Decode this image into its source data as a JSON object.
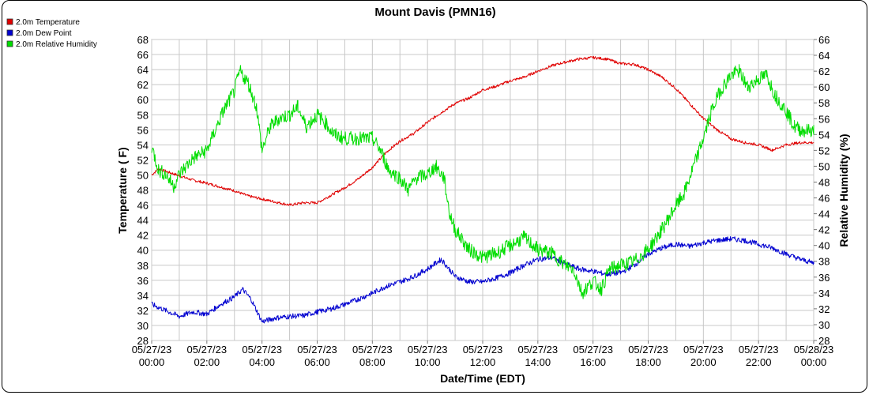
{
  "chart_data": {
    "type": "line",
    "title": "Mount Davis (PMN16)",
    "xlabel": "Date/Time (EDT)",
    "ylabel_left": "Temperature ( F)",
    "ylabel_right": "Relative Humidity (%)",
    "ylim_left": [
      28,
      68
    ],
    "ylim_right": [
      28,
      66
    ],
    "yticks_left": [
      28,
      30,
      32,
      34,
      36,
      38,
      40,
      42,
      44,
      46,
      48,
      50,
      52,
      54,
      56,
      58,
      60,
      62,
      64,
      66,
      68
    ],
    "yticks_right": [
      28,
      30,
      32,
      34,
      36,
      38,
      40,
      42,
      44,
      46,
      48,
      50,
      52,
      54,
      56,
      58,
      60,
      62,
      64,
      66
    ],
    "xlim_hours": [
      0,
      24
    ],
    "x_ticks": [
      {
        "hour": 0,
        "date": "05/27/23",
        "time": "00:00"
      },
      {
        "hour": 2,
        "date": "05/27/23",
        "time": "02:00"
      },
      {
        "hour": 4,
        "date": "05/27/23",
        "time": "04:00"
      },
      {
        "hour": 6,
        "date": "05/27/23",
        "time": "06:00"
      },
      {
        "hour": 8,
        "date": "05/27/23",
        "time": "08:00"
      },
      {
        "hour": 10,
        "date": "05/27/23",
        "time": "10:00"
      },
      {
        "hour": 12,
        "date": "05/27/23",
        "time": "12:00"
      },
      {
        "hour": 14,
        "date": "05/27/23",
        "time": "14:00"
      },
      {
        "hour": 16,
        "date": "05/27/23",
        "time": "16:00"
      },
      {
        "hour": 18,
        "date": "05/27/23",
        "time": "18:00"
      },
      {
        "hour": 20,
        "date": "05/27/23",
        "time": "20:00"
      },
      {
        "hour": 22,
        "date": "05/27/23",
        "time": "22:00"
      },
      {
        "hour": 24,
        "date": "05/28/23",
        "time": "00:00"
      }
    ],
    "grid": true,
    "legend_position": "top-left",
    "series": [
      {
        "name": "2.0m Temperature",
        "color": "#e00000",
        "axis": "left",
        "points": [
          [
            0,
            50.0
          ],
          [
            0.25,
            50.8
          ],
          [
            0.5,
            50.5
          ],
          [
            1.0,
            49.9
          ],
          [
            1.5,
            49.3
          ],
          [
            2.0,
            48.9
          ],
          [
            2.5,
            48.4
          ],
          [
            3.0,
            47.9
          ],
          [
            3.5,
            47.2
          ],
          [
            4.0,
            46.8
          ],
          [
            4.5,
            46.4
          ],
          [
            5.0,
            46.0
          ],
          [
            5.5,
            46.3
          ],
          [
            6.0,
            46.3
          ],
          [
            6.5,
            47.3
          ],
          [
            7.0,
            48.3
          ],
          [
            7.5,
            49.5
          ],
          [
            8.0,
            51.0
          ],
          [
            8.5,
            53.0
          ],
          [
            9.0,
            54.5
          ],
          [
            9.5,
            55.5
          ],
          [
            10.0,
            57.0
          ],
          [
            10.5,
            58.3
          ],
          [
            11.0,
            59.5
          ],
          [
            11.5,
            60.2
          ],
          [
            12.0,
            61.3
          ],
          [
            12.5,
            61.8
          ],
          [
            13.0,
            62.5
          ],
          [
            13.5,
            63.0
          ],
          [
            14.0,
            63.8
          ],
          [
            14.5,
            64.5
          ],
          [
            15.0,
            65.0
          ],
          [
            15.5,
            65.4
          ],
          [
            16.0,
            65.6
          ],
          [
            16.5,
            65.4
          ],
          [
            17.0,
            64.8
          ],
          [
            17.5,
            64.7
          ],
          [
            18.0,
            64.0
          ],
          [
            18.5,
            63.0
          ],
          [
            19.0,
            61.5
          ],
          [
            19.5,
            59.5
          ],
          [
            20.0,
            57.5
          ],
          [
            20.5,
            56.0
          ],
          [
            21.0,
            54.8
          ],
          [
            21.5,
            54.3
          ],
          [
            22.0,
            54.0
          ],
          [
            22.5,
            53.3
          ],
          [
            23.0,
            54.0
          ],
          [
            23.5,
            54.3
          ],
          [
            24.0,
            54.3
          ]
        ]
      },
      {
        "name": "2.0m Dew Point",
        "color": "#0000d0",
        "axis": "left",
        "points": [
          [
            0,
            32.8
          ],
          [
            0.5,
            32.0
          ],
          [
            1.0,
            31.2
          ],
          [
            1.5,
            31.8
          ],
          [
            2.0,
            31.5
          ],
          [
            2.5,
            32.8
          ],
          [
            3.0,
            33.8
          ],
          [
            3.3,
            34.8
          ],
          [
            3.6,
            33.5
          ],
          [
            4.0,
            30.5
          ],
          [
            4.5,
            31.0
          ],
          [
            5.0,
            31.2
          ],
          [
            5.5,
            31.3
          ],
          [
            6.0,
            31.8
          ],
          [
            6.5,
            32.2
          ],
          [
            7.0,
            32.8
          ],
          [
            7.5,
            33.5
          ],
          [
            8.0,
            34.3
          ],
          [
            8.5,
            35.2
          ],
          [
            9.0,
            35.8
          ],
          [
            9.5,
            36.5
          ],
          [
            10.0,
            37.5
          ],
          [
            10.5,
            38.8
          ],
          [
            11.0,
            36.5
          ],
          [
            11.5,
            35.8
          ],
          [
            12.0,
            35.8
          ],
          [
            12.5,
            36.3
          ],
          [
            13.0,
            37.0
          ],
          [
            13.5,
            38.0
          ],
          [
            14.0,
            38.8
          ],
          [
            14.5,
            39.0
          ],
          [
            15.0,
            38.2
          ],
          [
            15.5,
            37.5
          ],
          [
            16.0,
            37.2
          ],
          [
            16.5,
            36.8
          ],
          [
            17.0,
            37.0
          ],
          [
            17.5,
            38.0
          ],
          [
            18.0,
            39.5
          ],
          [
            18.5,
            40.3
          ],
          [
            19.0,
            40.8
          ],
          [
            19.5,
            40.5
          ],
          [
            20.0,
            41.0
          ],
          [
            20.5,
            41.3
          ],
          [
            21.0,
            41.5
          ],
          [
            21.5,
            41.3
          ],
          [
            22.0,
            40.8
          ],
          [
            22.5,
            40.3
          ],
          [
            23.0,
            39.5
          ],
          [
            23.5,
            38.8
          ],
          [
            24.0,
            38.3
          ]
        ]
      },
      {
        "name": "2.0m Relative Humidity",
        "color": "#00dd00",
        "axis": "right",
        "points": [
          [
            0,
            52.5
          ],
          [
            0.25,
            49.5
          ],
          [
            0.5,
            49.0
          ],
          [
            0.8,
            47.5
          ],
          [
            1.0,
            49.0
          ],
          [
            1.5,
            51.0
          ],
          [
            2.0,
            52.0
          ],
          [
            2.3,
            54.5
          ],
          [
            2.6,
            57.0
          ],
          [
            3.0,
            59.5
          ],
          [
            3.2,
            62.0
          ],
          [
            3.5,
            60.5
          ],
          [
            3.8,
            57.5
          ],
          [
            4.0,
            52.0
          ],
          [
            4.3,
            55.0
          ],
          [
            4.6,
            56.0
          ],
          [
            5.0,
            56.5
          ],
          [
            5.3,
            57.5
          ],
          [
            5.6,
            55.0
          ],
          [
            6.0,
            56.5
          ],
          [
            6.3,
            55.5
          ],
          [
            6.6,
            54.0
          ],
          [
            7.0,
            53.5
          ],
          [
            7.5,
            53.5
          ],
          [
            8.0,
            53.5
          ],
          [
            8.3,
            52.0
          ],
          [
            8.6,
            49.5
          ],
          [
            9.0,
            48.5
          ],
          [
            9.3,
            47.0
          ],
          [
            9.6,
            48.5
          ],
          [
            10.0,
            49.0
          ],
          [
            10.3,
            50.0
          ],
          [
            10.6,
            48.5
          ],
          [
            10.8,
            44.0
          ],
          [
            11.0,
            42.0
          ],
          [
            11.5,
            39.5
          ],
          [
            12.0,
            38.5
          ],
          [
            12.5,
            39.0
          ],
          [
            13.0,
            40.0
          ],
          [
            13.5,
            41.0
          ],
          [
            14.0,
            39.5
          ],
          [
            14.5,
            39.0
          ],
          [
            15.0,
            37.5
          ],
          [
            15.3,
            37.0
          ],
          [
            15.6,
            34.0
          ],
          [
            16.0,
            35.5
          ],
          [
            16.3,
            34.5
          ],
          [
            16.6,
            37.0
          ],
          [
            17.0,
            37.5
          ],
          [
            17.5,
            38.0
          ],
          [
            18.0,
            39.5
          ],
          [
            18.5,
            42.0
          ],
          [
            19.0,
            45.0
          ],
          [
            19.3,
            46.5
          ],
          [
            19.6,
            49.5
          ],
          [
            20.0,
            53.5
          ],
          [
            20.3,
            57.0
          ],
          [
            20.6,
            59.5
          ],
          [
            21.0,
            61.5
          ],
          [
            21.3,
            62.0
          ],
          [
            21.6,
            60.0
          ],
          [
            22.0,
            61.0
          ],
          [
            22.3,
            61.5
          ],
          [
            22.6,
            59.0
          ],
          [
            23.0,
            57.0
          ],
          [
            23.3,
            55.0
          ],
          [
            23.6,
            54.5
          ],
          [
            24.0,
            54.5
          ]
        ]
      }
    ]
  }
}
